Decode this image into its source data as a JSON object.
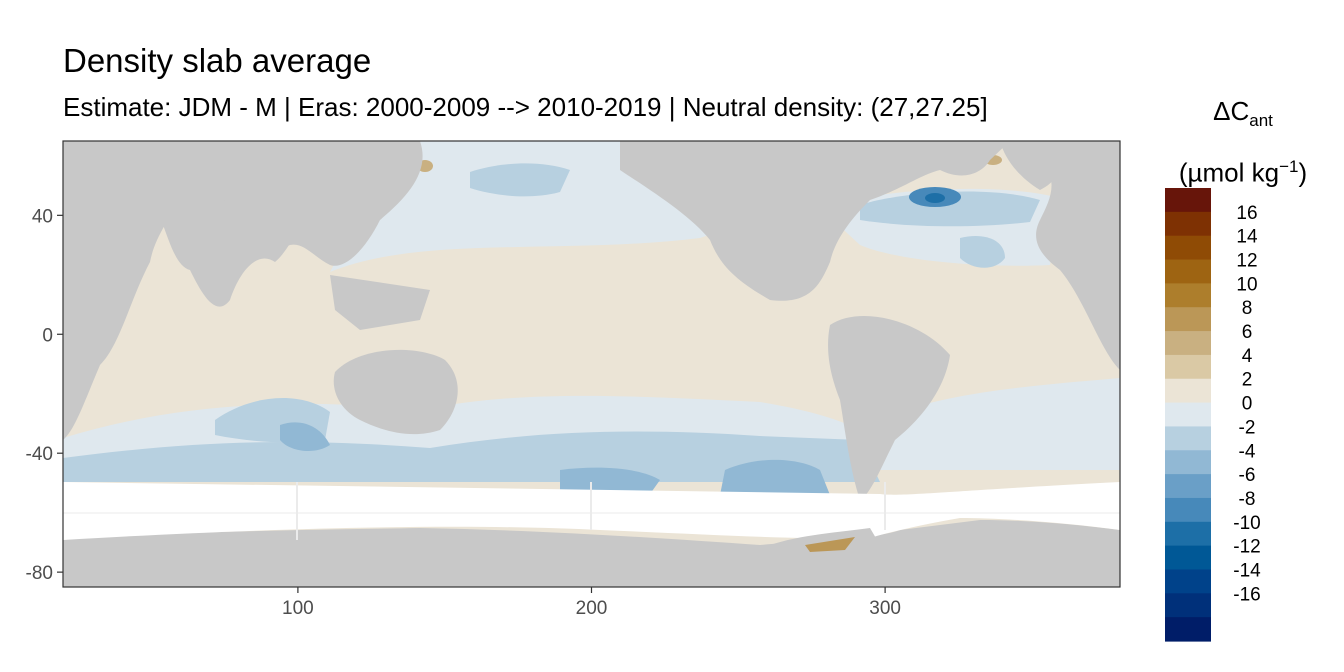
{
  "title": "Density slab average",
  "subtitle": "Estimate: JDM - M | Eras: 2000-2009 --> 2010-2019 | Neutral density: (27,27.25]",
  "legend": {
    "title_main": "ΔC",
    "title_sub": "ant",
    "unit_prefix": "(µmol kg",
    "unit_sup": "−1",
    "unit_suffix": ")",
    "labels": [
      "16",
      "14",
      "12",
      "10",
      "8",
      "6",
      "4",
      "2",
      "0",
      "-2",
      "-4",
      "-6",
      "-8",
      "-10",
      "-12",
      "-14",
      "-16"
    ],
    "colors": [
      "#67150a",
      "#7e3103",
      "#8f4b05",
      "#9e6412",
      "#ad7e2c",
      "#bb9757",
      "#c9b081",
      "#dac9a5",
      "#ebe4d6",
      "#dfe8ee",
      "#b7d0e0",
      "#91b8d4",
      "#6a9fc7",
      "#4789ba",
      "#1d6fa7",
      "#005896",
      "#00428a",
      "#00307a",
      "#001d68"
    ]
  },
  "map": {
    "x_ticks": [
      "100",
      "200",
      "300"
    ],
    "y_ticks": [
      "40",
      "0",
      "-40",
      "-80"
    ],
    "x_range": [
      20,
      380
    ],
    "y_range": [
      -85,
      65
    ],
    "colors": {
      "land": "#c8c8c8",
      "ocean_base": "#ebe4d6",
      "no_data": "#ffffff",
      "grid": "#ebebeb"
    }
  }
}
